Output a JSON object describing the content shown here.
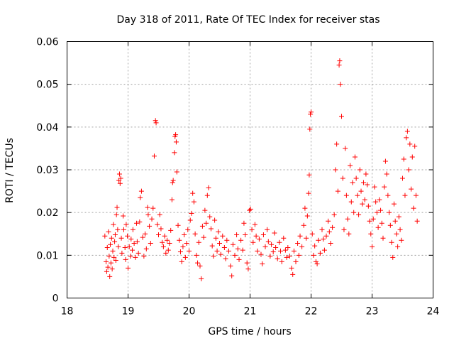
{
  "colors": {
    "points": "#ff0000"
  },
  "chart_data": {
    "type": "scatter",
    "title": "Day 318 of 2011, Rate Of TEC Index for receiver stas",
    "xlabel": "GPS time / hours",
    "ylabel": "ROTI / TECUs",
    "xlim": [
      18,
      24
    ],
    "ylim": [
      0,
      0.06
    ],
    "xticks": [
      "18",
      "19",
      "20",
      "21",
      "22",
      "23",
      "24"
    ],
    "yticks": [
      "0",
      "0.01",
      "0.02",
      "0.03",
      "0.04",
      "0.05",
      "0.06"
    ],
    "grid": true,
    "marker": "plus",
    "series": [
      {
        "name": "ROTI",
        "points": [
          [
            18.62,
            0.0145
          ],
          [
            18.64,
            0.0085
          ],
          [
            18.65,
            0.0062
          ],
          [
            18.66,
            0.0118
          ],
          [
            18.67,
            0.0072
          ],
          [
            18.68,
            0.0155
          ],
          [
            18.69,
            0.0098
          ],
          [
            18.7,
            0.005
          ],
          [
            18.71,
            0.0125
          ],
          [
            18.72,
            0.0082
          ],
          [
            18.73,
            0.014
          ],
          [
            18.74,
            0.0068
          ],
          [
            18.75,
            0.011
          ],
          [
            18.76,
            0.0172
          ],
          [
            18.77,
            0.0095
          ],
          [
            18.78,
            0.0132
          ],
          [
            18.79,
            0.0148
          ],
          [
            18.8,
            0.0088
          ],
          [
            18.81,
            0.0195
          ],
          [
            18.82,
            0.0212
          ],
          [
            18.83,
            0.016
          ],
          [
            18.84,
            0.012
          ],
          [
            18.85,
            0.0275
          ],
          [
            18.86,
            0.029
          ],
          [
            18.87,
            0.0268
          ],
          [
            18.88,
            0.028
          ],
          [
            18.89,
            0.014
          ],
          [
            18.9,
            0.0105
          ],
          [
            18.92,
            0.0192
          ],
          [
            18.93,
            0.016
          ],
          [
            18.95,
            0.0118
          ],
          [
            18.96,
            0.009
          ],
          [
            18.97,
            0.0172
          ],
          [
            18.99,
            0.0145
          ],
          [
            19.0,
            0.007
          ],
          [
            19.02,
            0.012
          ],
          [
            19.04,
            0.0098
          ],
          [
            19.05,
            0.0138
          ],
          [
            19.07,
            0.0112
          ],
          [
            19.08,
            0.016
          ],
          [
            19.1,
            0.0128
          ],
          [
            19.12,
            0.0095
          ],
          [
            19.14,
            0.0175
          ],
          [
            19.15,
            0.0132
          ],
          [
            19.17,
            0.0105
          ],
          [
            19.19,
            0.0178
          ],
          [
            19.2,
            0.0235
          ],
          [
            19.22,
            0.025
          ],
          [
            19.24,
            0.0142
          ],
          [
            19.26,
            0.0098
          ],
          [
            19.28,
            0.015
          ],
          [
            19.3,
            0.0115
          ],
          [
            19.32,
            0.0212
          ],
          [
            19.33,
            0.0195
          ],
          [
            19.35,
            0.0168
          ],
          [
            19.37,
            0.0128
          ],
          [
            19.39,
            0.0185
          ],
          [
            19.41,
            0.021
          ],
          [
            19.43,
            0.0332
          ],
          [
            19.45,
            0.0415
          ],
          [
            19.46,
            0.041
          ],
          [
            19.48,
            0.0172
          ],
          [
            19.5,
            0.0148
          ],
          [
            19.52,
            0.0195
          ],
          [
            19.54,
            0.0162
          ],
          [
            19.56,
            0.013
          ],
          [
            19.58,
            0.012
          ],
          [
            19.6,
            0.0145
          ],
          [
            19.62,
            0.0105
          ],
          [
            19.64,
            0.0135
          ],
          [
            19.66,
            0.0112
          ],
          [
            19.68,
            0.0128
          ],
          [
            19.7,
            0.0158
          ],
          [
            19.72,
            0.023
          ],
          [
            19.73,
            0.027
          ],
          [
            19.74,
            0.0275
          ],
          [
            19.76,
            0.034
          ],
          [
            19.77,
            0.0378
          ],
          [
            19.78,
            0.0382
          ],
          [
            19.79,
            0.0365
          ],
          [
            19.8,
            0.0295
          ],
          [
            19.82,
            0.017
          ],
          [
            19.84,
            0.0135
          ],
          [
            19.86,
            0.0108
          ],
          [
            19.88,
            0.0085
          ],
          [
            19.9,
            0.012
          ],
          [
            19.92,
            0.0148
          ],
          [
            19.94,
            0.0095
          ],
          [
            19.96,
            0.0128
          ],
          [
            19.98,
            0.016
          ],
          [
            20.0,
            0.011
          ],
          [
            20.02,
            0.0182
          ],
          [
            20.04,
            0.0198
          ],
          [
            20.06,
            0.0245
          ],
          [
            20.08,
            0.0225
          ],
          [
            20.1,
            0.015
          ],
          [
            20.12,
            0.01
          ],
          [
            20.14,
            0.0082
          ],
          [
            20.16,
            0.013
          ],
          [
            20.18,
            0.0075
          ],
          [
            20.2,
            0.0045
          ],
          [
            20.22,
            0.0168
          ],
          [
            20.24,
            0.0142
          ],
          [
            20.26,
            0.0205
          ],
          [
            20.28,
            0.0175
          ],
          [
            20.3,
            0.024
          ],
          [
            20.32,
            0.0258
          ],
          [
            20.34,
            0.019
          ],
          [
            20.36,
            0.0162
          ],
          [
            20.38,
            0.0122
          ],
          [
            20.4,
            0.0098
          ],
          [
            20.42,
            0.0182
          ],
          [
            20.44,
            0.014
          ],
          [
            20.46,
            0.011
          ],
          [
            20.48,
            0.0155
          ],
          [
            20.5,
            0.0128
          ],
          [
            20.52,
            0.0102
          ],
          [
            20.55,
            0.0145
          ],
          [
            20.58,
            0.0118
          ],
          [
            20.6,
            0.0092
          ],
          [
            20.62,
            0.0135
          ],
          [
            20.65,
            0.011
          ],
          [
            20.68,
            0.0075
          ],
          [
            20.7,
            0.0052
          ],
          [
            20.72,
            0.0125
          ],
          [
            20.75,
            0.01
          ],
          [
            20.78,
            0.0148
          ],
          [
            20.8,
            0.0115
          ],
          [
            20.82,
            0.009
          ],
          [
            20.85,
            0.0135
          ],
          [
            20.88,
            0.0112
          ],
          [
            20.9,
            0.0175
          ],
          [
            20.92,
            0.0148
          ],
          [
            20.95,
            0.0082
          ],
          [
            20.97,
            0.0068
          ],
          [
            20.99,
            0.0205
          ],
          [
            21.01,
            0.0208
          ],
          [
            21.03,
            0.016
          ],
          [
            21.05,
            0.013
          ],
          [
            21.08,
            0.0172
          ],
          [
            21.1,
            0.0145
          ],
          [
            21.12,
            0.011
          ],
          [
            21.15,
            0.0138
          ],
          [
            21.18,
            0.0102
          ],
          [
            21.2,
            0.008
          ],
          [
            21.22,
            0.0148
          ],
          [
            21.25,
            0.012
          ],
          [
            21.28,
            0.016
          ],
          [
            21.3,
            0.0132
          ],
          [
            21.33,
            0.0098
          ],
          [
            21.35,
            0.0125
          ],
          [
            21.38,
            0.0108
          ],
          [
            21.4,
            0.0152
          ],
          [
            21.42,
            0.0118
          ],
          [
            21.45,
            0.0092
          ],
          [
            21.48,
            0.013
          ],
          [
            21.5,
            0.011
          ],
          [
            21.52,
            0.0085
          ],
          [
            21.55,
            0.014
          ],
          [
            21.58,
            0.0112
          ],
          [
            21.6,
            0.0095
          ],
          [
            21.62,
            0.0118
          ],
          [
            21.65,
            0.0098
          ],
          [
            21.68,
            0.007
          ],
          [
            21.7,
            0.0055
          ],
          [
            21.72,
            0.011
          ],
          [
            21.75,
            0.0085
          ],
          [
            21.78,
            0.0128
          ],
          [
            21.8,
            0.01
          ],
          [
            21.82,
            0.0145
          ],
          [
            21.85,
            0.012
          ],
          [
            21.88,
            0.017
          ],
          [
            21.9,
            0.021
          ],
          [
            21.92,
            0.014
          ],
          [
            21.94,
            0.0192
          ],
          [
            21.96,
            0.0245
          ],
          [
            21.97,
            0.0288
          ],
          [
            21.98,
            0.0395
          ],
          [
            21.99,
            0.043
          ],
          [
            22.0,
            0.0435
          ],
          [
            22.02,
            0.015
          ],
          [
            22.04,
            0.01
          ],
          [
            22.06,
            0.0122
          ],
          [
            22.08,
            0.0085
          ],
          [
            22.1,
            0.008
          ],
          [
            22.12,
            0.0135
          ],
          [
            22.15,
            0.0105
          ],
          [
            22.18,
            0.016
          ],
          [
            22.2,
            0.0138
          ],
          [
            22.22,
            0.0112
          ],
          [
            22.25,
            0.0145
          ],
          [
            22.28,
            0.018
          ],
          [
            22.3,
            0.0155
          ],
          [
            22.32,
            0.0128
          ],
          [
            22.35,
            0.0165
          ],
          [
            22.38,
            0.0195
          ],
          [
            22.4,
            0.03
          ],
          [
            22.42,
            0.036
          ],
          [
            22.44,
            0.025
          ],
          [
            22.46,
            0.0545
          ],
          [
            22.47,
            0.0555
          ],
          [
            22.48,
            0.05
          ],
          [
            22.5,
            0.0425
          ],
          [
            22.52,
            0.028
          ],
          [
            22.54,
            0.016
          ],
          [
            22.56,
            0.035
          ],
          [
            22.58,
            0.024
          ],
          [
            22.6,
            0.0185
          ],
          [
            22.62,
            0.015
          ],
          [
            22.64,
            0.031
          ],
          [
            22.66,
            0.0225
          ],
          [
            22.68,
            0.027
          ],
          [
            22.7,
            0.02
          ],
          [
            22.72,
            0.033
          ],
          [
            22.74,
            0.028
          ],
          [
            22.76,
            0.024
          ],
          [
            22.78,
            0.0195
          ],
          [
            22.8,
            0.03
          ],
          [
            22.82,
            0.025
          ],
          [
            22.84,
            0.022
          ],
          [
            22.86,
            0.027
          ],
          [
            22.88,
            0.023
          ],
          [
            22.9,
            0.029
          ],
          [
            22.92,
            0.0265
          ],
          [
            22.94,
            0.0215
          ],
          [
            22.96,
            0.018
          ],
          [
            22.98,
            0.015
          ],
          [
            23.0,
            0.012
          ],
          [
            23.02,
            0.0185
          ],
          [
            23.04,
            0.026
          ],
          [
            23.06,
            0.0225
          ],
          [
            23.08,
            0.02
          ],
          [
            23.1,
            0.0165
          ],
          [
            23.12,
            0.023
          ],
          [
            23.14,
            0.0205
          ],
          [
            23.16,
            0.0175
          ],
          [
            23.18,
            0.014
          ],
          [
            23.2,
            0.026
          ],
          [
            23.22,
            0.032
          ],
          [
            23.24,
            0.029
          ],
          [
            23.26,
            0.024
          ],
          [
            23.28,
            0.02
          ],
          [
            23.3,
            0.017
          ],
          [
            23.32,
            0.013
          ],
          [
            23.34,
            0.0095
          ],
          [
            23.36,
            0.022
          ],
          [
            23.38,
            0.018
          ],
          [
            23.4,
            0.015
          ],
          [
            23.42,
            0.012
          ],
          [
            23.44,
            0.019
          ],
          [
            23.46,
            0.016
          ],
          [
            23.48,
            0.0135
          ],
          [
            23.5,
            0.028
          ],
          [
            23.52,
            0.0325
          ],
          [
            23.54,
            0.024
          ],
          [
            23.56,
            0.0375
          ],
          [
            23.58,
            0.039
          ],
          [
            23.6,
            0.03
          ],
          [
            23.62,
            0.036
          ],
          [
            23.64,
            0.0255
          ],
          [
            23.66,
            0.033
          ],
          [
            23.68,
            0.021
          ],
          [
            23.7,
            0.0355
          ],
          [
            23.72,
            0.024
          ],
          [
            23.74,
            0.018
          ]
        ]
      }
    ]
  }
}
